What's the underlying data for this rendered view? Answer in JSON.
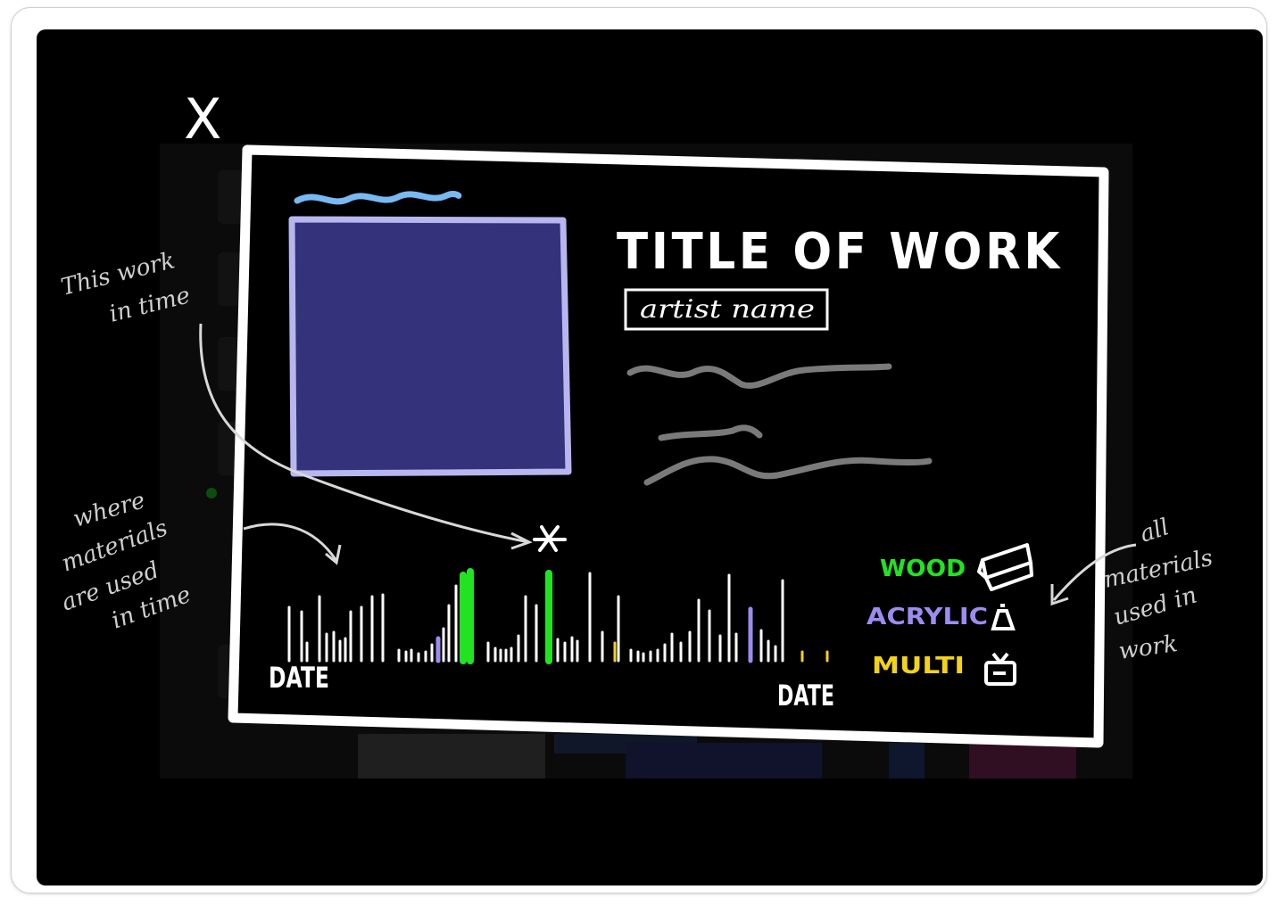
{
  "close_label": "X",
  "modal": {
    "title": "TITLE OF WORK",
    "artist": "artist name",
    "timeline": {
      "start_label": "DATE",
      "end_label": "DATE"
    },
    "materials": [
      {
        "label": "WOOD",
        "color": "#22e322",
        "icon": "wood-block-icon"
      },
      {
        "label": "ACRYLIC",
        "color": "#9d8cf0",
        "icon": "paint-tube-icon"
      },
      {
        "label": "MULTI",
        "color": "#f3d21b",
        "icon": "tv-icon"
      }
    ]
  },
  "annotations": {
    "this_work": [
      "This work",
      "in time"
    ],
    "where_materials": [
      "where",
      "materials",
      "are used",
      "in time"
    ],
    "all_materials": [
      "all",
      "materials",
      "used in",
      "work"
    ]
  },
  "colors": {
    "artwork": "#33327a",
    "artwork_border": "#b7b6ef",
    "title_underline": "#79b9f2"
  }
}
